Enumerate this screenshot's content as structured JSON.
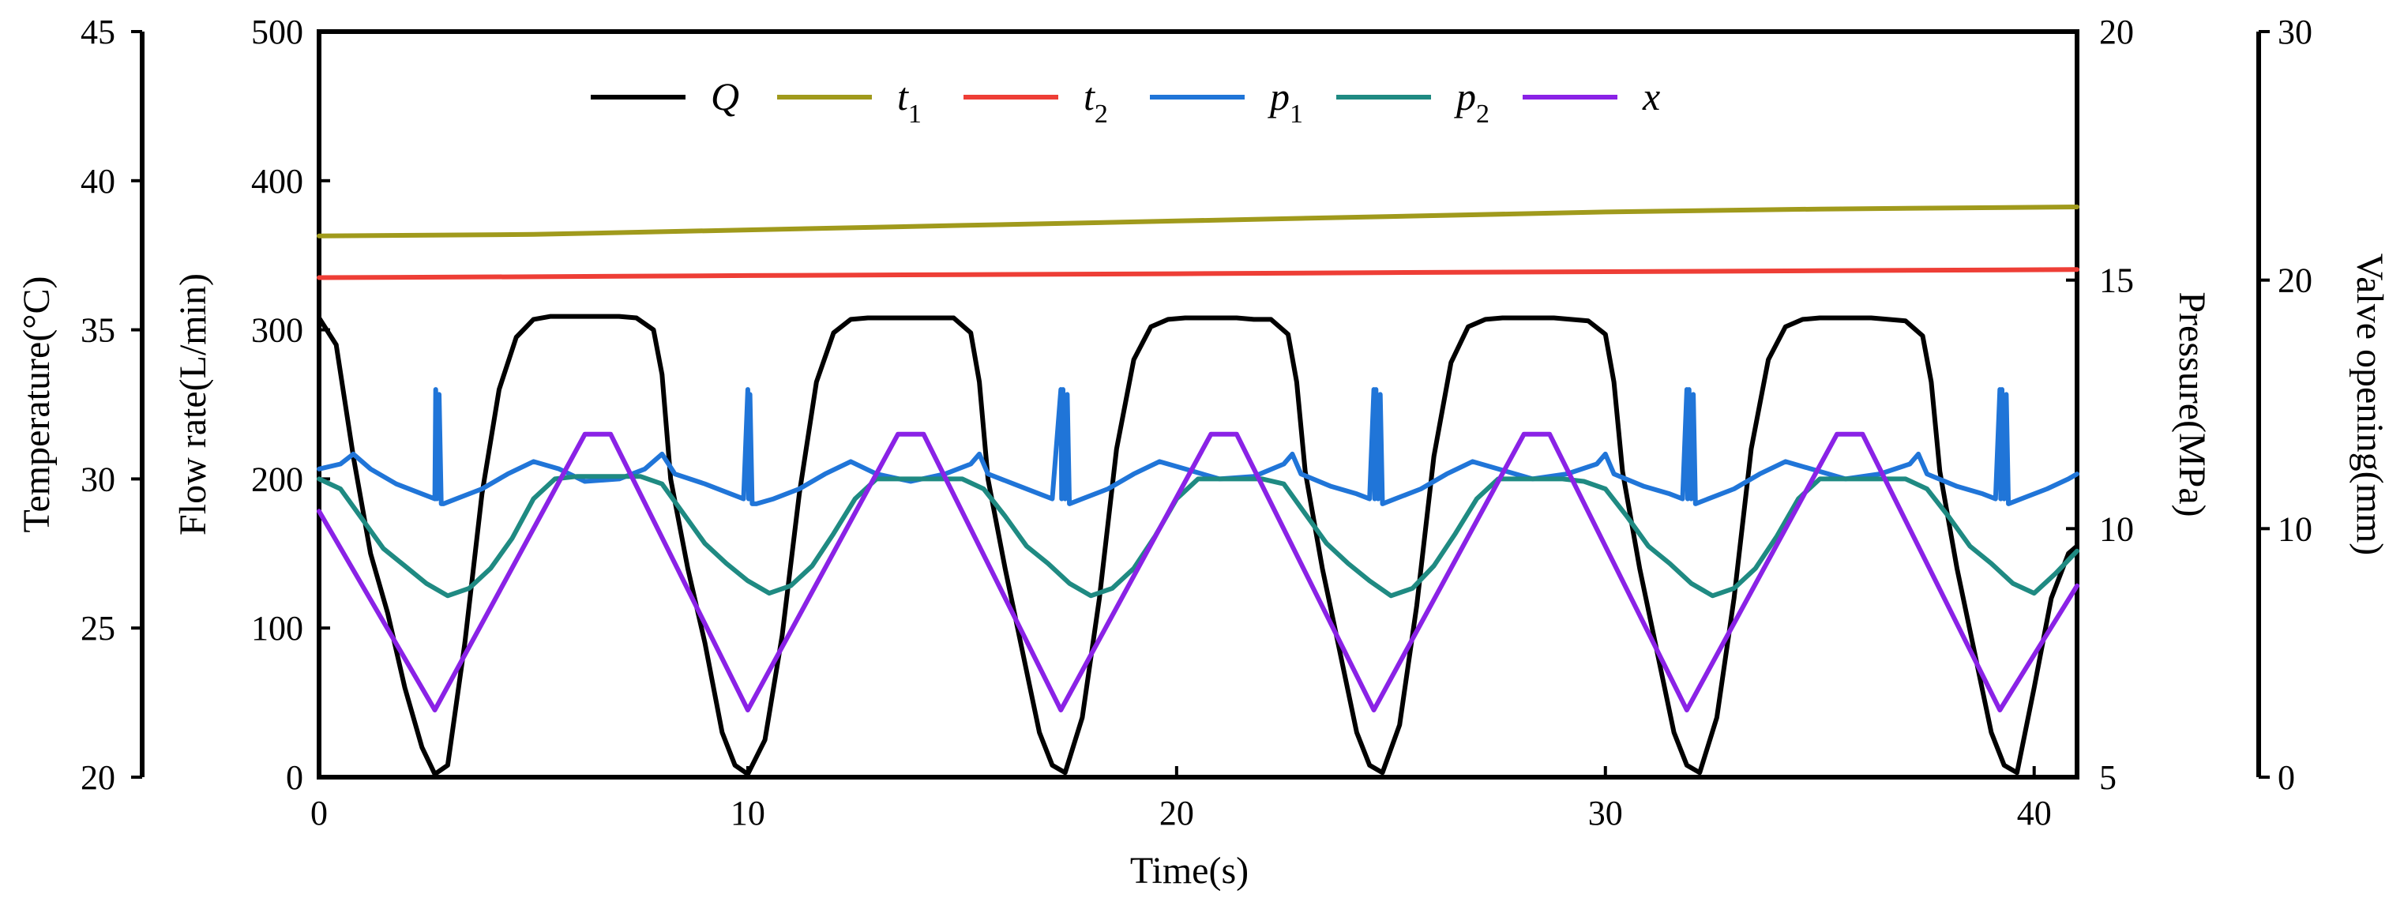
{
  "chart_data": {
    "type": "line",
    "x_axis": {
      "label": "Time(s)",
      "range": [
        0,
        41
      ],
      "ticks": [
        "0",
        "10",
        "20",
        "30",
        "40"
      ],
      "tick_values": [
        0,
        10,
        20,
        30,
        40
      ]
    },
    "axes": {
      "temperature": {
        "label": "Temperature(°C)",
        "range": [
          20,
          45
        ],
        "ticks": [
          "20",
          "25",
          "30",
          "35",
          "40",
          "45"
        ],
        "tick_values": [
          20,
          25,
          30,
          35,
          40,
          45
        ]
      },
      "flow": {
        "label": "Flow rate(L/min)",
        "range": [
          0,
          500
        ],
        "ticks": [
          "0",
          "100",
          "200",
          "300",
          "400",
          "500"
        ],
        "tick_values": [
          0,
          100,
          200,
          300,
          400,
          500
        ]
      },
      "pressure": {
        "label": "Pressure(MPa)",
        "range": [
          5,
          20
        ],
        "ticks": [
          "5",
          "10",
          "15",
          "20"
        ],
        "tick_values": [
          5,
          10,
          15,
          20
        ]
      },
      "valve": {
        "label": "Valve opening(mm)",
        "range": [
          0,
          30
        ],
        "ticks": [
          "0",
          "10",
          "20",
          "30"
        ],
        "tick_values": [
          0,
          10,
          20,
          30
        ]
      }
    },
    "series": [
      {
        "name": "Q",
        "sub": "",
        "axis": "flow",
        "color": "#000000",
        "x": [
          0,
          0.4,
          0.8,
          1.2,
          1.6,
          2.0,
          2.4,
          2.7,
          3.0,
          3.4,
          3.8,
          4.2,
          4.6,
          5.0,
          5.4,
          5.8,
          6.2,
          6.6,
          7.0,
          7.4,
          7.8,
          8.0,
          8.2,
          8.6,
          9.0,
          9.4,
          9.7,
          10.0,
          10.4,
          10.8,
          11.2,
          11.6,
          12.0,
          12.4,
          12.8,
          13.2,
          13.6,
          14.0,
          14.4,
          14.8,
          15.2,
          15.4,
          15.6,
          16.0,
          16.4,
          16.8,
          17.1,
          17.4,
          17.8,
          18.2,
          18.6,
          19.0,
          19.4,
          19.8,
          20.2,
          20.6,
          21.0,
          21.4,
          21.8,
          22.2,
          22.6,
          22.8,
          23.0,
          23.4,
          23.8,
          24.2,
          24.5,
          24.8,
          25.2,
          25.6,
          26.0,
          26.4,
          26.8,
          27.2,
          27.6,
          28.0,
          28.4,
          28.8,
          29.2,
          29.6,
          30.0,
          30.2,
          30.4,
          30.8,
          31.2,
          31.6,
          31.9,
          32.2,
          32.6,
          33.0,
          33.4,
          33.8,
          34.2,
          34.6,
          35.0,
          35.4,
          35.8,
          36.2,
          36.6,
          37.0,
          37.4,
          37.6,
          37.8,
          38.2,
          38.6,
          39.0,
          39.3,
          39.6,
          40.0,
          40.4,
          40.8,
          41.0
        ],
        "y": [
          308,
          290,
          215,
          150,
          110,
          60,
          20,
          2,
          8,
          90,
          190,
          260,
          295,
          307,
          309,
          309,
          309,
          309,
          309,
          308,
          300,
          270,
          200,
          140,
          90,
          30,
          8,
          2,
          25,
          95,
          190,
          265,
          298,
          307,
          308,
          308,
          308,
          308,
          308,
          308,
          298,
          265,
          200,
          140,
          85,
          30,
          8,
          3,
          40,
          120,
          220,
          280,
          302,
          307,
          308,
          308,
          308,
          308,
          307,
          307,
          297,
          265,
          205,
          140,
          85,
          30,
          8,
          3,
          35,
          115,
          215,
          278,
          302,
          307,
          308,
          308,
          308,
          308,
          307,
          306,
          297,
          265,
          205,
          140,
          85,
          30,
          8,
          3,
          40,
          120,
          220,
          280,
          302,
          307,
          308,
          308,
          308,
          308,
          307,
          306,
          296,
          265,
          205,
          140,
          85,
          30,
          8,
          3,
          60,
          120,
          150,
          155
        ]
      },
      {
        "name": "t",
        "sub": "1",
        "axis": "temperature",
        "color": "#a09a1c",
        "x": [
          0,
          5,
          10,
          15,
          20,
          25,
          30,
          35,
          41
        ],
        "y": [
          38.15,
          38.2,
          38.35,
          38.5,
          38.65,
          38.8,
          38.95,
          39.05,
          39.12
        ]
      },
      {
        "name": "t",
        "sub": "2",
        "axis": "temperature",
        "color": "#ee3e36",
        "x": [
          0,
          5,
          10,
          15,
          20,
          25,
          30,
          35,
          41
        ],
        "y": [
          36.75,
          36.78,
          36.82,
          36.85,
          36.88,
          36.92,
          36.95,
          36.98,
          37.02
        ]
      },
      {
        "name": "p",
        "sub": "1",
        "axis": "pressure",
        "color": "#2075d8",
        "x": [
          0,
          0.5,
          0.8,
          1.2,
          1.8,
          2.4,
          2.7,
          2.72,
          2.75,
          2.8,
          2.85,
          2.9,
          3.2,
          3.8,
          4.4,
          5.0,
          5.6,
          6.2,
          7.0,
          7.6,
          8.0,
          8.3,
          9.0,
          9.6,
          9.9,
          10.0,
          10.02,
          10.05,
          10.1,
          10.2,
          10.6,
          11.2,
          11.8,
          12.4,
          13.0,
          13.8,
          14.6,
          15.2,
          15.4,
          15.6,
          16.2,
          16.8,
          17.1,
          17.3,
          17.32,
          17.35,
          17.4,
          17.45,
          17.5,
          17.8,
          18.4,
          19.0,
          19.6,
          20.2,
          21.0,
          21.8,
          22.5,
          22.7,
          22.9,
          23.6,
          24.2,
          24.5,
          24.6,
          24.62,
          24.65,
          24.7,
          24.75,
          24.8,
          25.1,
          25.7,
          26.3,
          26.9,
          27.5,
          28.3,
          29.1,
          29.8,
          30.0,
          30.2,
          30.9,
          31.5,
          31.8,
          31.9,
          31.92,
          31.95,
          32.0,
          32.05,
          32.1,
          32.4,
          33.0,
          33.6,
          34.2,
          34.8,
          35.6,
          36.4,
          37.1,
          37.3,
          37.5,
          38.2,
          38.8,
          39.1,
          39.2,
          39.22,
          39.25,
          39.3,
          39.35,
          39.4,
          39.7,
          40.3,
          40.8,
          41.0
        ],
        "y": [
          11.2,
          11.3,
          11.5,
          11.2,
          10.9,
          10.7,
          10.6,
          12.8,
          10.6,
          12.7,
          10.5,
          10.5,
          10.6,
          10.8,
          11.1,
          11.35,
          11.2,
          10.95,
          11.0,
          11.2,
          11.5,
          11.1,
          10.9,
          10.7,
          10.6,
          12.8,
          10.6,
          12.7,
          10.5,
          10.5,
          10.6,
          10.8,
          11.1,
          11.35,
          11.1,
          10.95,
          11.1,
          11.3,
          11.5,
          11.1,
          10.9,
          10.7,
          10.6,
          12.8,
          10.6,
          12.8,
          10.6,
          12.7,
          10.5,
          10.6,
          10.8,
          11.1,
          11.35,
          11.2,
          11.0,
          11.05,
          11.3,
          11.5,
          11.1,
          10.85,
          10.7,
          10.6,
          12.8,
          10.6,
          12.8,
          10.6,
          12.7,
          10.5,
          10.6,
          10.8,
          11.1,
          11.35,
          11.2,
          11.0,
          11.1,
          11.3,
          11.5,
          11.1,
          10.85,
          10.7,
          10.6,
          12.8,
          10.6,
          12.8,
          10.6,
          12.7,
          10.5,
          10.6,
          10.8,
          11.1,
          11.35,
          11.2,
          11.0,
          11.1,
          11.3,
          11.5,
          11.1,
          10.85,
          10.7,
          10.6,
          12.8,
          10.6,
          12.8,
          10.6,
          12.7,
          10.5,
          10.6,
          10.8,
          11.0,
          11.1
        ]
      },
      {
        "name": "p",
        "sub": "2",
        "axis": "pressure",
        "color": "#1f8a82",
        "x": [
          0,
          0.5,
          1.0,
          1.5,
          2.0,
          2.5,
          3.0,
          3.5,
          4.0,
          4.5,
          5.0,
          5.5,
          6.0,
          6.5,
          7.0,
          7.5,
          8.0,
          8.5,
          9.0,
          9.5,
          10.0,
          10.5,
          11.0,
          11.5,
          12.0,
          12.5,
          13.0,
          13.5,
          14.0,
          14.5,
          15.0,
          15.5,
          16.0,
          16.5,
          17.0,
          17.5,
          18.0,
          18.5,
          19.0,
          19.5,
          20.0,
          20.5,
          21.0,
          21.5,
          22.0,
          22.5,
          23.0,
          23.5,
          24.0,
          24.5,
          25.0,
          25.5,
          26.0,
          26.5,
          27.0,
          27.5,
          28.0,
          28.5,
          29.0,
          29.5,
          30.0,
          30.5,
          31.0,
          31.5,
          32.0,
          32.5,
          33.0,
          33.5,
          34.0,
          34.5,
          35.0,
          35.5,
          36.0,
          36.5,
          37.0,
          37.5,
          38.0,
          38.5,
          39.0,
          39.5,
          40.0,
          40.5,
          41.0
        ],
        "y": [
          11.0,
          10.8,
          10.2,
          9.6,
          9.25,
          8.9,
          8.65,
          8.8,
          9.2,
          9.8,
          10.6,
          11.0,
          11.05,
          11.05,
          11.05,
          11.05,
          10.9,
          10.3,
          9.7,
          9.3,
          8.95,
          8.7,
          8.85,
          9.25,
          9.9,
          10.6,
          11.0,
          11.0,
          11.0,
          11.0,
          11.0,
          10.8,
          10.25,
          9.65,
          9.3,
          8.9,
          8.65,
          8.8,
          9.2,
          9.85,
          10.6,
          11.0,
          11.0,
          11.0,
          11.0,
          10.9,
          10.3,
          9.7,
          9.3,
          8.95,
          8.65,
          8.8,
          9.25,
          9.9,
          10.6,
          11.0,
          11.0,
          11.0,
          11.0,
          10.95,
          10.8,
          10.25,
          9.65,
          9.3,
          8.9,
          8.65,
          8.8,
          9.2,
          9.85,
          10.6,
          11.0,
          11.0,
          11.0,
          11.0,
          11.0,
          10.8,
          10.25,
          9.65,
          9.3,
          8.9,
          8.7,
          9.1,
          9.55
        ]
      },
      {
        "name": "x",
        "sub": "",
        "axis": "valve",
        "color": "#8a22e6",
        "x": [
          0,
          2.7,
          6.2,
          6.8,
          10.0,
          13.5,
          14.1,
          17.3,
          20.8,
          21.4,
          24.6,
          28.1,
          28.7,
          31.9,
          35.4,
          36.0,
          39.2,
          41.0
        ],
        "y": [
          10.7,
          2.7,
          13.8,
          13.8,
          2.7,
          13.8,
          13.8,
          2.7,
          13.8,
          13.8,
          2.7,
          13.8,
          13.8,
          2.7,
          13.8,
          13.8,
          2.7,
          7.7
        ]
      }
    ]
  }
}
